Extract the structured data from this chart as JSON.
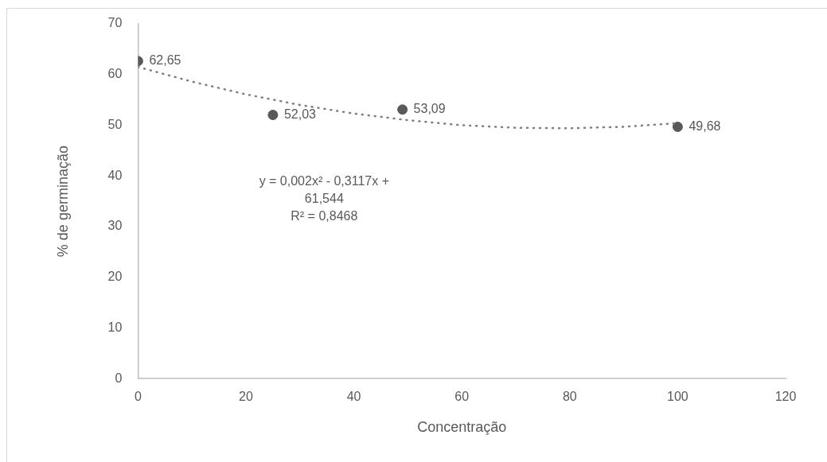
{
  "chart_data": {
    "type": "scatter",
    "xlabel": "Concentração",
    "ylabel": "% de germinação",
    "xlim": [
      0,
      120
    ],
    "xticks": [
      0,
      20,
      40,
      60,
      80,
      100,
      120
    ],
    "ylim": [
      0,
      70
    ],
    "yticks": [
      0,
      10,
      20,
      30,
      40,
      50,
      60,
      70
    ],
    "grid": false,
    "legend": false,
    "series": [
      {
        "type": "line",
        "color": "#7f7f7f",
        "marker": "none",
        "line_style": "dotted",
        "x": [
          0,
          10,
          20,
          30,
          40,
          50,
          60,
          70,
          80,
          90,
          100
        ],
        "values": [
          61.5,
          58.6,
          56.1,
          54.0,
          52.3,
          51.0,
          50.0,
          49.5,
          49.4,
          49.7,
          50.4
        ]
      },
      {
        "color": "#595959",
        "marker": "circle",
        "x": [
          0,
          25,
          49,
          100
        ],
        "values": [
          62.65,
          52.03,
          53.09,
          49.68
        ],
        "value_labels": [
          "62,65",
          "52,03",
          "53,09",
          "49,68"
        ]
      }
    ],
    "annotations": [
      "y = 0,002x² - 0,3117x + 61,544",
      "R² = 0,8468"
    ]
  }
}
